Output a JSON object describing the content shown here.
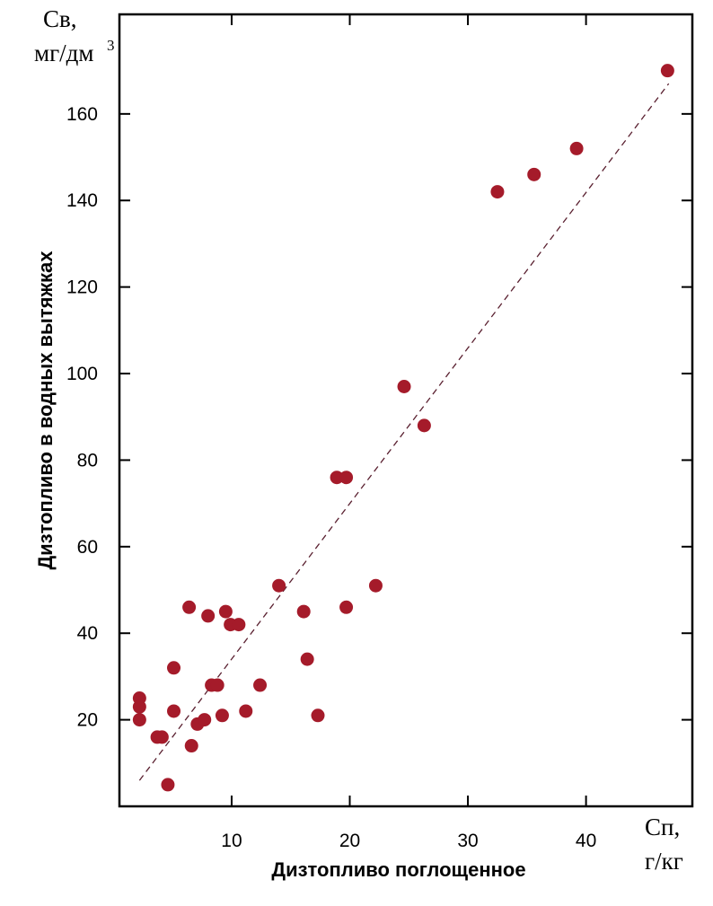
{
  "chart_data": {
    "type": "scatter",
    "title": "",
    "xlabel": "Дизтопливо поглощенное",
    "ylabel": "Дизтопливо в водных вытяжках",
    "x_unit": {
      "symbol": "Сп,",
      "unit": "г/кг"
    },
    "y_unit": {
      "symbol": "Св,",
      "unit": "мг/дм",
      "unit_superscript": "3"
    },
    "xlim": [
      0.5,
      49
    ],
    "ylim": [
      0,
      183
    ],
    "x_ticks": [
      10,
      20,
      30,
      40
    ],
    "y_ticks": [
      20,
      40,
      60,
      80,
      100,
      120,
      140,
      160
    ],
    "grid": false,
    "legend": "none",
    "marker_color": "#a51b2a",
    "trendline": {
      "style": "dashed",
      "color": "#5a2030",
      "x": [
        2.2,
        47
      ],
      "y": [
        6,
        167
      ]
    },
    "points": [
      [
        2.2,
        25
      ],
      [
        2.2,
        23
      ],
      [
        2.2,
        20
      ],
      [
        3.7,
        16
      ],
      [
        4.1,
        16
      ],
      [
        4.6,
        5
      ],
      [
        5.1,
        32
      ],
      [
        5.1,
        22
      ],
      [
        6.4,
        46
      ],
      [
        6.6,
        14
      ],
      [
        7.1,
        19
      ],
      [
        7.7,
        20
      ],
      [
        8.0,
        44
      ],
      [
        8.3,
        28
      ],
      [
        8.8,
        28
      ],
      [
        9.2,
        21
      ],
      [
        9.5,
        45
      ],
      [
        9.9,
        42
      ],
      [
        10.6,
        42
      ],
      [
        11.2,
        22
      ],
      [
        12.4,
        28
      ],
      [
        14.0,
        51
      ],
      [
        16.1,
        45
      ],
      [
        16.4,
        34
      ],
      [
        17.3,
        21
      ],
      [
        18.9,
        76
      ],
      [
        19.7,
        76
      ],
      [
        19.7,
        46
      ],
      [
        22.2,
        51
      ],
      [
        24.6,
        97
      ],
      [
        26.3,
        88
      ],
      [
        32.5,
        142
      ],
      [
        35.6,
        146
      ],
      [
        39.2,
        152
      ],
      [
        46.9,
        170
      ]
    ]
  }
}
